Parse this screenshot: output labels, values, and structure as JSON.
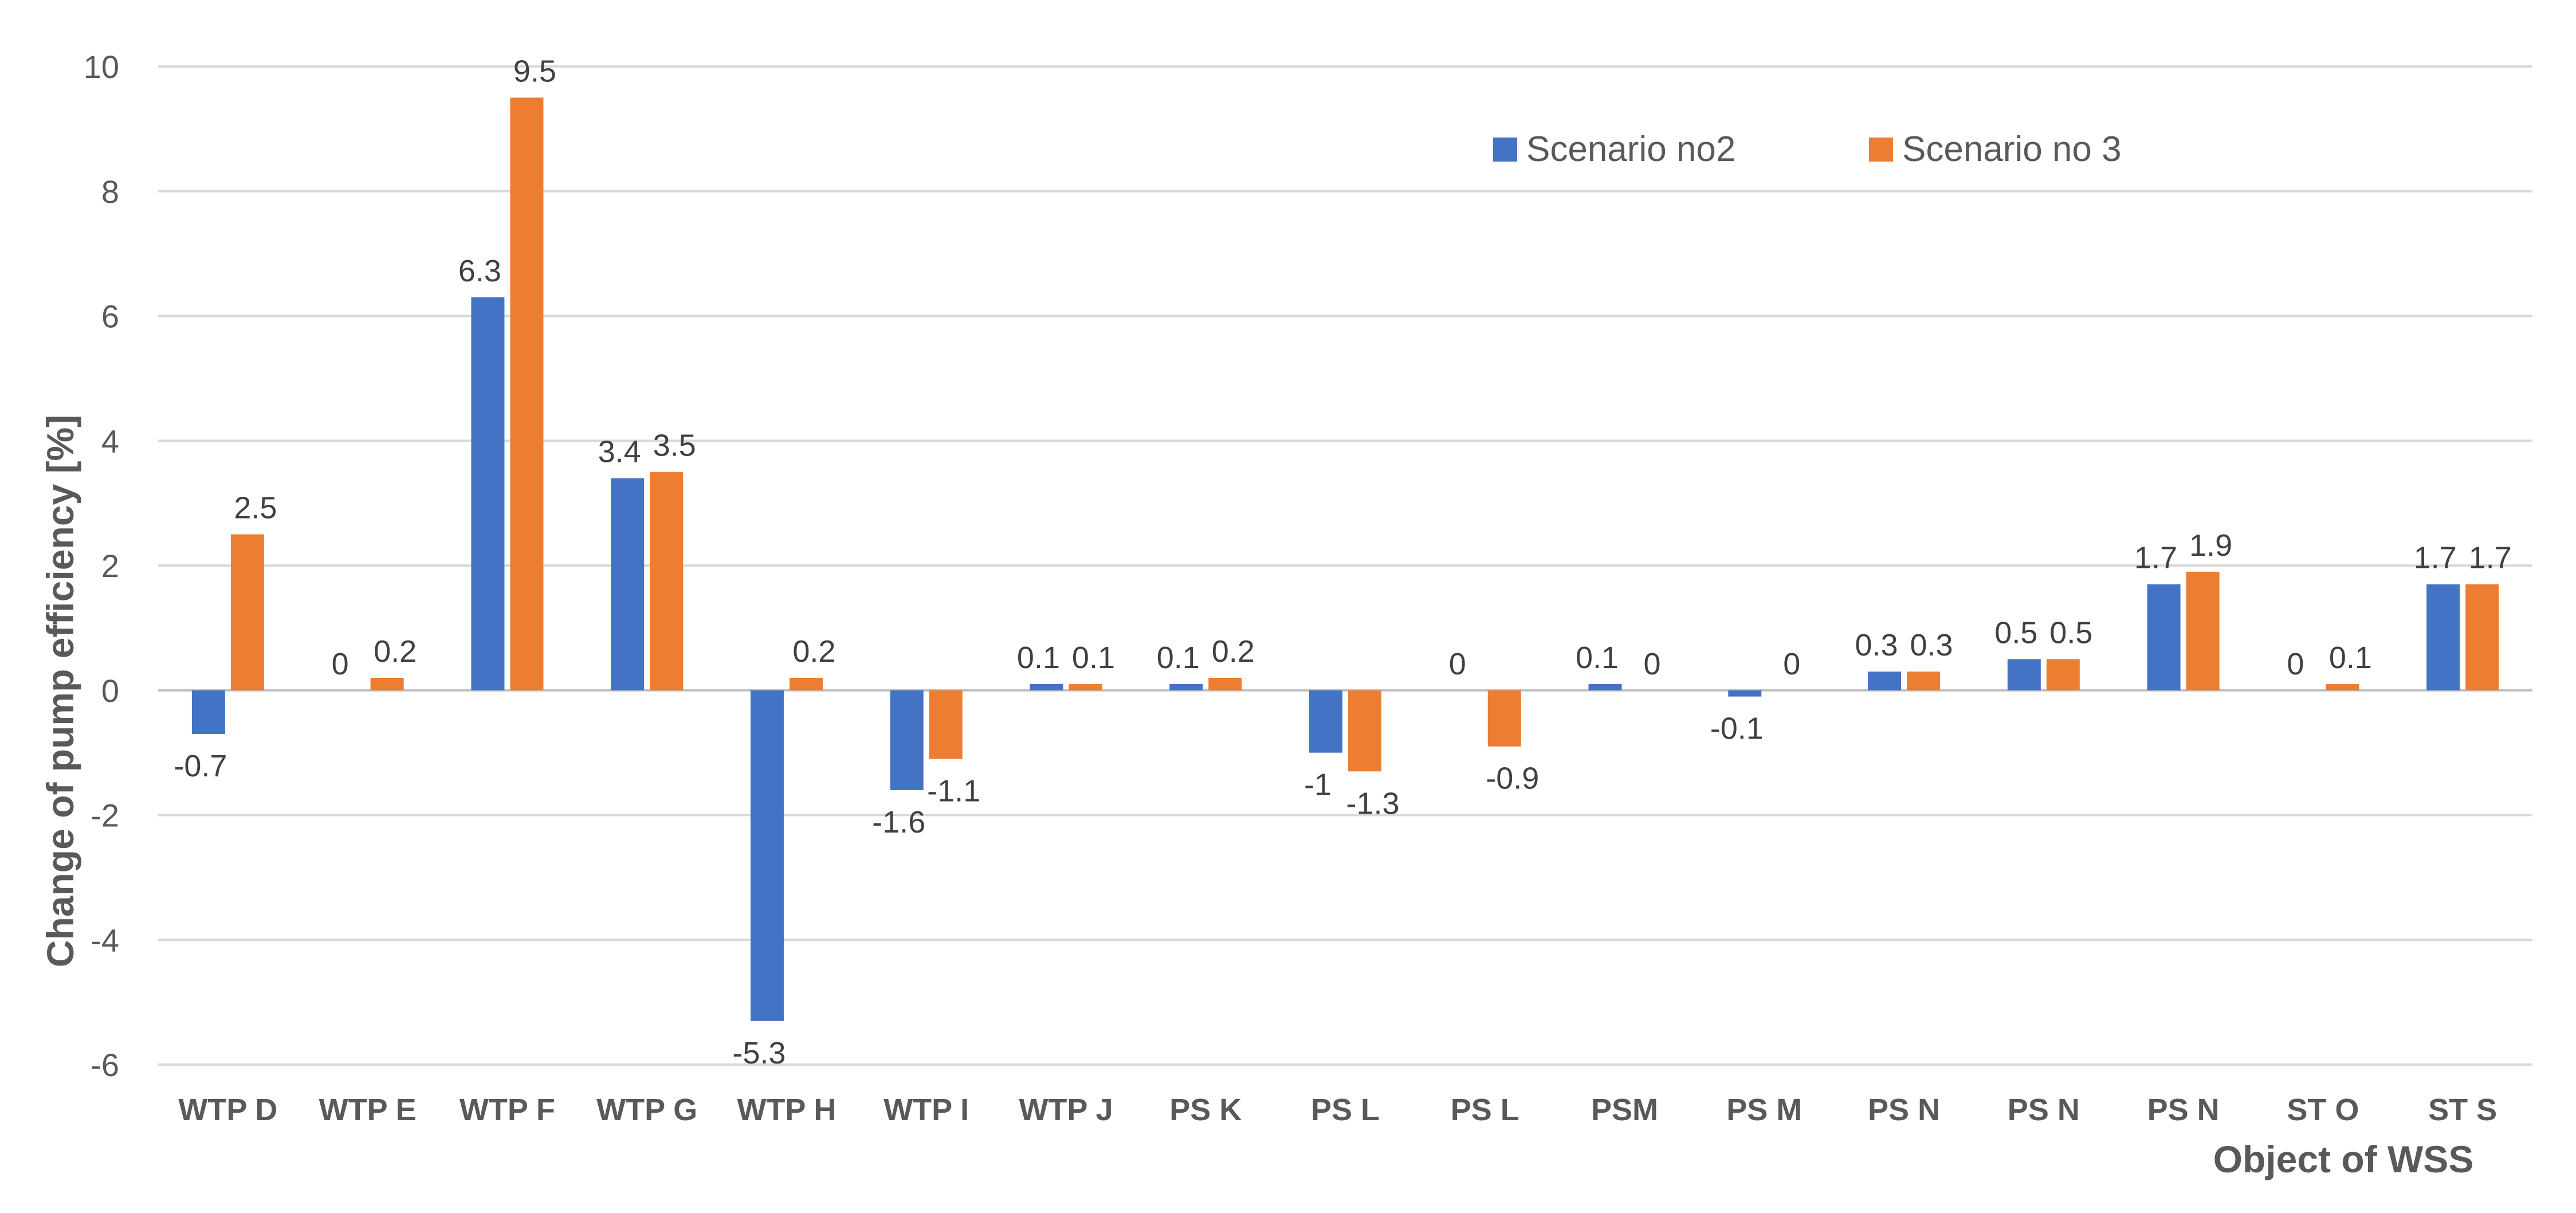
{
  "chart_data": {
    "type": "bar",
    "title": "",
    "xlabel": "Object of WSS",
    "ylabel": "Change of pump efficiency [%]",
    "ylim": [
      -6,
      10
    ],
    "yticks": [
      -6,
      -4,
      -2,
      0,
      2,
      4,
      6,
      8,
      10
    ],
    "grid": true,
    "legend_position": "top-right",
    "categories": [
      "WTP D",
      "WTP E",
      "WTP F",
      "WTP G",
      "WTP H",
      "WTP I",
      "WTP J",
      "PS K",
      "PS L",
      "PS L",
      "PSM",
      "PS M",
      "PS N",
      "PS N",
      "PS N",
      "ST O",
      "ST S"
    ],
    "series": [
      {
        "name": "Scenario no2",
        "color": "#4472C4",
        "values": [
          -0.7,
          0,
          6.3,
          3.4,
          -5.3,
          -1.6,
          0.1,
          0.1,
          -1,
          0,
          0.1,
          -0.1,
          0.3,
          0.5,
          1.7,
          0,
          1.7
        ],
        "labels": [
          "-0.7",
          "0",
          "6.3",
          "3.4",
          "-5.3",
          "-1.6",
          "0.1",
          "0.1",
          "-1",
          "0",
          "0.1",
          "-0.1",
          "0.3",
          "0.5",
          "1.7",
          "0",
          "1.7"
        ]
      },
      {
        "name": "Scenario no 3",
        "color": "#ED7D31",
        "values": [
          2.5,
          0.2,
          9.5,
          3.5,
          0.2,
          -1.1,
          0.1,
          0.2,
          -1.3,
          -0.9,
          0,
          0,
          0.3,
          0.5,
          1.9,
          0.1,
          1.7
        ],
        "labels": [
          "2.5",
          "0.2",
          "9.5",
          "3.5",
          "0.2",
          "-1.1",
          "0.1",
          "0.2",
          "-1.3",
          "-0.9",
          "0",
          "0",
          "0.3",
          "0.5",
          "1.9",
          "0.1",
          "1.7"
        ]
      }
    ]
  }
}
